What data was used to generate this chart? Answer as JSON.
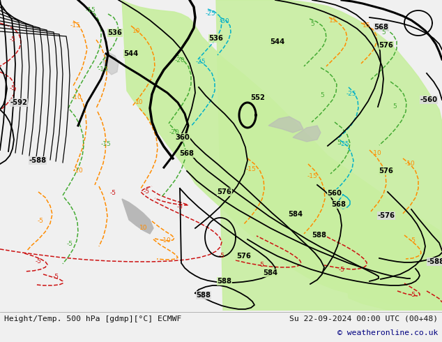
{
  "title_left": "Height/Temp. 500 hPa [gdmp][°C] ECMWF",
  "title_right": "Su 22-09-2024 00:00 UTC (00+48)",
  "copyright": "© weatheronline.co.uk",
  "bg_color": "#dcdcdc",
  "green_color": "#c8eea0",
  "bottom_bg": "#f0f0f0",
  "black": "#000000",
  "orange": "#ff8c00",
  "red": "#cc1111",
  "green_line": "#44aa33",
  "cyan": "#00b0c8",
  "navy": "#000080",
  "figsize": [
    6.34,
    4.9
  ],
  "dpi": 100
}
